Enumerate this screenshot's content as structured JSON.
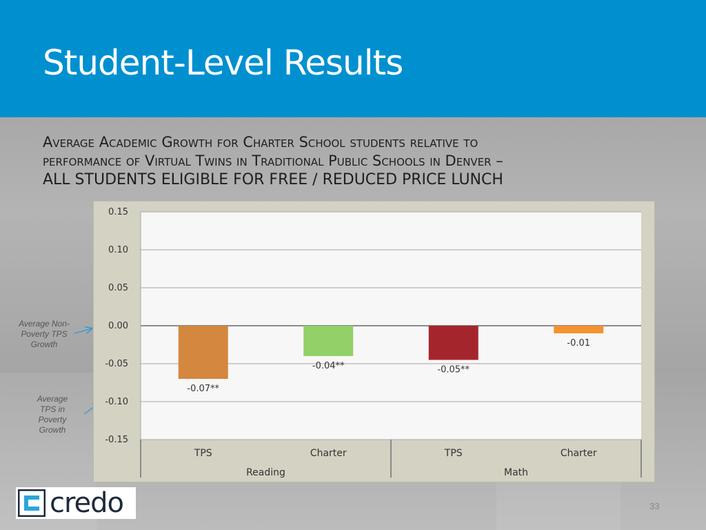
{
  "slide": {
    "title": "Student-Level Results",
    "subtitle_line1": "Average Academic Growth for Charter School students relative to",
    "subtitle_line2": "performance of Virtual Twins in Traditional Public Schools in Denver –",
    "subtitle_line3": "ALL STUDENTS ELIGIBLE FOR FREE / REDUCED PRICE LUNCH",
    "page_number": "33"
  },
  "annotations": {
    "non_poverty": "Average Non-Poverty TPS Growth",
    "poverty": "Average TPS in Poverty Growth"
  },
  "logo": {
    "text": "credo"
  },
  "colors": {
    "header": "#0090d0",
    "reading_tps": "#d4873e",
    "reading_charter": "#92d068",
    "math_tps": "#a4262c",
    "math_charter": "#f5922f",
    "arrow": "#2e9bd6"
  },
  "chart_data": {
    "type": "bar",
    "groups": [
      "Reading",
      "Math"
    ],
    "categories": [
      "TPS",
      "Charter",
      "TPS",
      "Charter"
    ],
    "values": [
      -0.07,
      -0.04,
      -0.045,
      -0.01
    ],
    "data_labels": [
      "-0.07**",
      "-0.04**",
      "-0.05**",
      "-0.01"
    ],
    "ylim": [
      -0.15,
      0.15
    ],
    "yticks": [
      0.15,
      0.1,
      0.05,
      0.0,
      -0.05,
      -0.1,
      -0.15
    ],
    "ytick_labels": [
      "0.15",
      "0.10",
      "0.05",
      "0.00",
      "-0.05",
      "-0.10",
      "-0.15"
    ],
    "grid": true
  }
}
